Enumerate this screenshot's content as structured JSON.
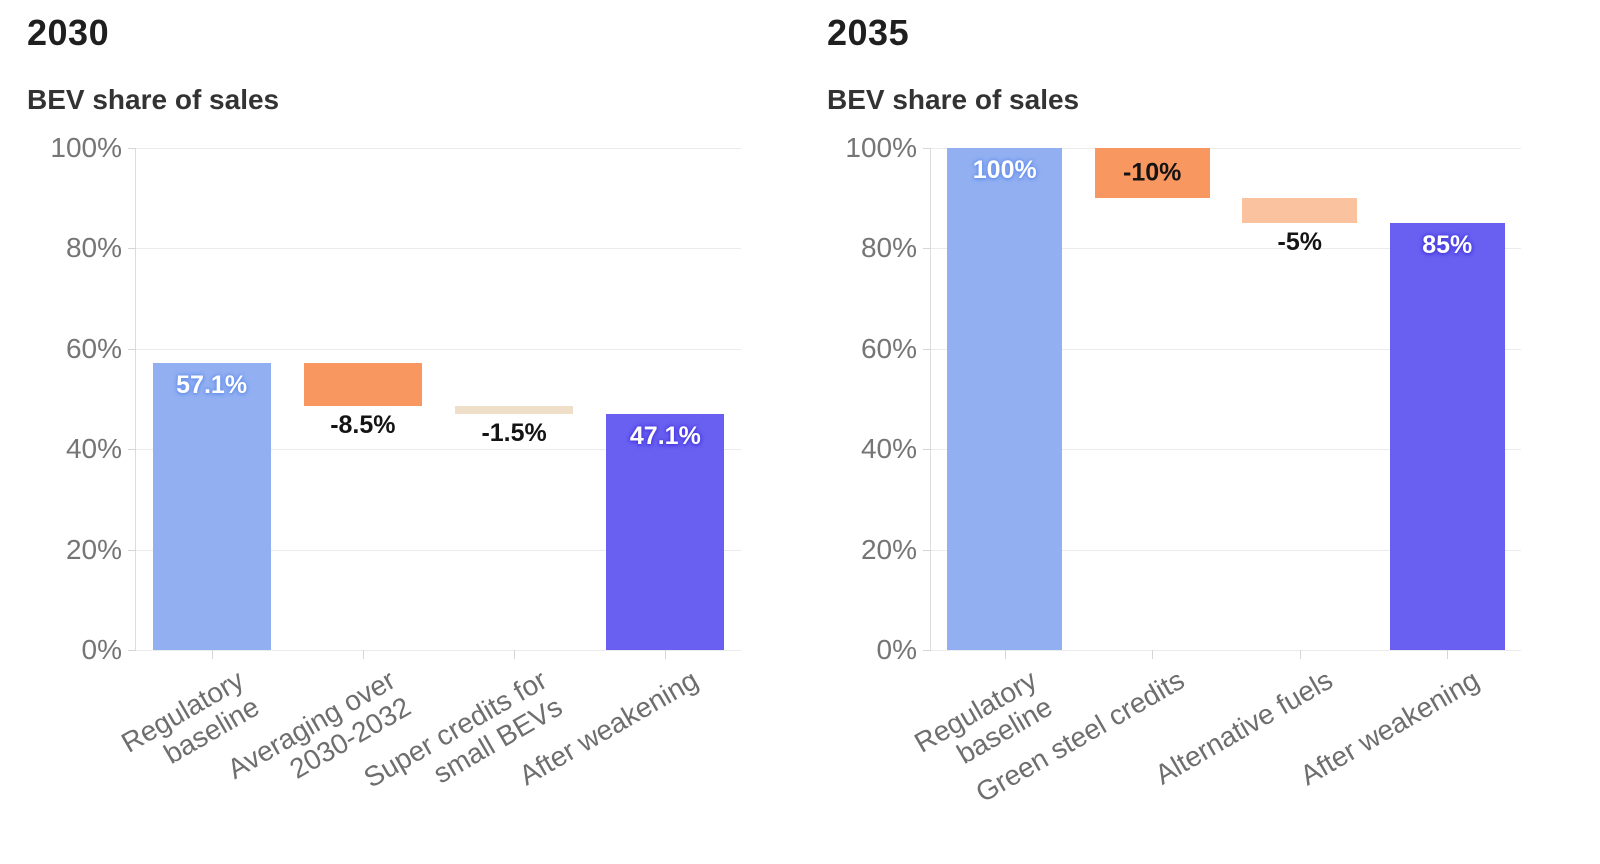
{
  "chart_data": [
    {
      "type": "bar",
      "subtype": "waterfall",
      "title": "2030",
      "ylabel": "BEV share of sales",
      "xlabel": "",
      "ylim": [
        0,
        100
      ],
      "grid": true,
      "legend": false,
      "y_ticks": [
        {
          "label": "100%",
          "value": 100
        },
        {
          "label": "80%",
          "value": 80
        },
        {
          "label": "60%",
          "value": 60
        },
        {
          "label": "40%",
          "value": 40
        },
        {
          "label": "20%",
          "value": 20
        },
        {
          "label": "0%",
          "value": 0
        }
      ],
      "bars": [
        {
          "category": "Regulatory\nbaseline",
          "from": 0,
          "to": 57.1,
          "value": 57.1,
          "value_label": "57.1%",
          "color": "#91AFF1",
          "label_placement": "inside-top",
          "label_color": "#ffffff",
          "halo": "#6b92ec"
        },
        {
          "category": "Averaging over\n2030-2032",
          "from": 48.6,
          "to": 57.1,
          "value": -8.5,
          "value_label": "-8.5%",
          "color": "#F99760",
          "label_placement": "below",
          "label_color": "#141414",
          "halo": ""
        },
        {
          "category": "Super credits for\nsmall BEVs",
          "from": 47.1,
          "to": 48.6,
          "value": -1.5,
          "value_label": "-1.5%",
          "color": "#EFDFC9",
          "label_placement": "below",
          "label_color": "#141414",
          "halo": ""
        },
        {
          "category": "After weakening",
          "from": 0,
          "to": 47.1,
          "value": 47.1,
          "value_label": "47.1%",
          "color": "#695FF0",
          "label_placement": "inside-top",
          "label_color": "#ffffff",
          "halo": "#4a3ee0"
        }
      ]
    },
    {
      "type": "bar",
      "subtype": "waterfall",
      "title": "2035",
      "ylabel": "BEV share of sales",
      "xlabel": "",
      "ylim": [
        0,
        100
      ],
      "grid": true,
      "legend": false,
      "y_ticks": [
        {
          "label": "100%",
          "value": 100
        },
        {
          "label": "80%",
          "value": 80
        },
        {
          "label": "60%",
          "value": 60
        },
        {
          "label": "40%",
          "value": 40
        },
        {
          "label": "20%",
          "value": 20
        },
        {
          "label": "0%",
          "value": 0
        }
      ],
      "bars": [
        {
          "category": "Regulatory\nbaseline",
          "from": 0,
          "to": 100,
          "value": 100,
          "value_label": "100%",
          "color": "#91AFF1",
          "label_placement": "inside-top",
          "label_color": "#ffffff",
          "halo": "#6b92ec"
        },
        {
          "category": "Green steel credits",
          "from": 90,
          "to": 100,
          "value": -10,
          "value_label": "-10%",
          "color": "#F99760",
          "label_placement": "inside-center",
          "label_color": "#141414",
          "halo": ""
        },
        {
          "category": "Alternative fuels",
          "from": 85,
          "to": 90,
          "value": -5,
          "value_label": "-5%",
          "color": "#FBC29F",
          "label_placement": "below",
          "label_color": "#141414",
          "halo": ""
        },
        {
          "category": "After weakening",
          "from": 0,
          "to": 85,
          "value": 85,
          "value_label": "85%",
          "color": "#695FF0",
          "label_placement": "inside-top",
          "label_color": "#ffffff",
          "halo": "#4a3ee0"
        }
      ]
    }
  ],
  "style": {
    "grid_color": "#ebebeb",
    "axis_color": "#d6d6d6",
    "y_tick_label_color": "#757575",
    "x_label_color": "#6e6e6e",
    "title_color": "#1f1f1f",
    "subtitle_color": "#333333",
    "background": "#ffffff"
  }
}
